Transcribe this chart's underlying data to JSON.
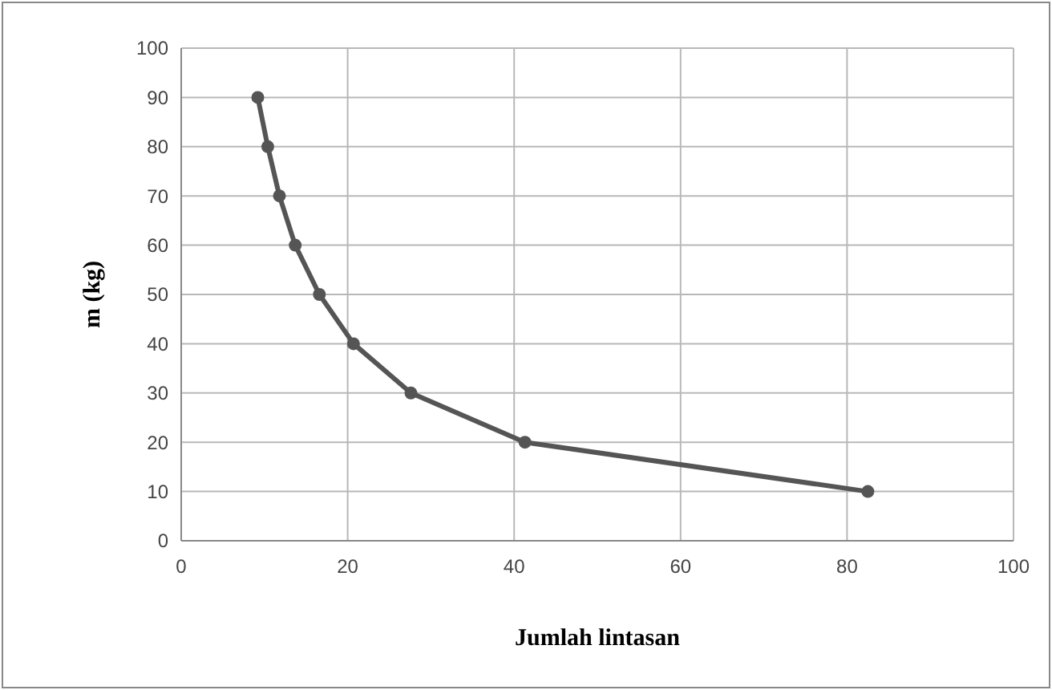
{
  "chart_data": {
    "type": "line",
    "xlabel": "Jumlah lintasan",
    "ylabel": "m (kg)",
    "x": [
      9.2,
      10.4,
      11.8,
      13.7,
      16.6,
      20.7,
      27.6,
      41.3,
      82.5
    ],
    "series": [
      {
        "color": "#555555",
        "values": [
          90,
          80,
          70,
          60,
          50,
          40,
          30,
          20,
          10
        ]
      }
    ],
    "xlim": [
      0,
      100
    ],
    "xticks": [
      0,
      20,
      40,
      60,
      80,
      100
    ],
    "ylim": [
      0,
      100
    ],
    "yticks": [
      0,
      10,
      20,
      30,
      40,
      50,
      60,
      70,
      80,
      90,
      100
    ],
    "grid": true,
    "marker": "circle",
    "line_style": "solid"
  }
}
